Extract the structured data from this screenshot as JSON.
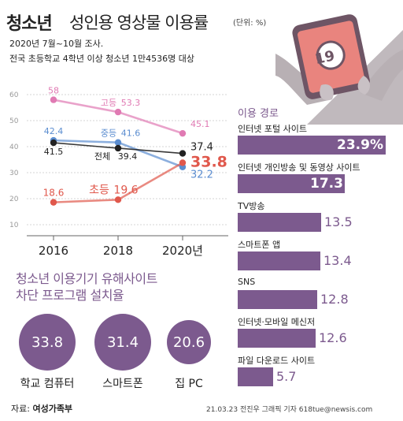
{
  "header": {
    "title_bold": "청소년",
    "title_rest": "성인용 영상물 이용률",
    "unit": "(단위: %)",
    "note1": "2020년 7월~10월 조사.",
    "note2": "전국 초등학교 4학년 이상 청소년 1만4536명 대상"
  },
  "illustration": {
    "badge": "19",
    "icon": "phone-in-hands-icon"
  },
  "chart_data": [
    {
      "type": "line",
      "categories": [
        "2016",
        "2018",
        "2020년"
      ],
      "ylim": [
        10,
        60
      ],
      "yticks": [
        10,
        20,
        30,
        40,
        50,
        60
      ],
      "grid": true,
      "series": [
        {
          "name": "고등",
          "values": [
            58,
            53.3,
            45.1
          ],
          "labels": [
            "58",
            "53.3",
            "45.1"
          ],
          "color": "#e07ab3"
        },
        {
          "name": "중등",
          "values": [
            42.4,
            41.6,
            32.2
          ],
          "labels": [
            "42.4",
            "41.6",
            "32.2"
          ],
          "color": "#5b8dd0"
        },
        {
          "name": "전체",
          "values": [
            41.5,
            39.4,
            37.4
          ],
          "labels": [
            "41.5",
            "39.4",
            "37.4"
          ],
          "color": "#222222"
        },
        {
          "name": "초등",
          "values": [
            18.6,
            19.6,
            33.8
          ],
          "labels": [
            "18.6",
            "19.6",
            "33.8"
          ],
          "color": "#e0584c"
        }
      ]
    },
    {
      "type": "bar",
      "title": "이용 경로",
      "categories": [
        "인터넷 포털 사이트",
        "인터넷 개인방송 및 동영상 사이트",
        "TV방송",
        "스마트폰 앱",
        "SNS",
        "인터넷·모바일 메신저",
        "파일 다운로드 사이트"
      ],
      "values": [
        23.9,
        17.3,
        13.5,
        13.4,
        12.8,
        12.6,
        5.7
      ],
      "labels": [
        "23.9%",
        "17.3",
        "13.5",
        "13.4",
        "12.8",
        "12.6",
        "5.7"
      ],
      "color": "#7c5a8e"
    },
    {
      "type": "bubble",
      "title": "청소년 이용기기 유해사이트 차단 프로그램 설치율",
      "categories": [
        "학교 컴퓨터",
        "스마트폰",
        "집 PC"
      ],
      "values": [
        33.8,
        31.4,
        20.6
      ],
      "labels": [
        "33.8",
        "31.4",
        "20.6"
      ]
    }
  ],
  "block": {
    "title_line1": "청소년 이용기기 유해사이트",
    "title_line2": "차단 프로그램 설치율"
  },
  "footer": {
    "source_prefix": "자료:",
    "source_org": "여성가족부",
    "credit": "21.03.23 전진우 그래픽 기자 618tue@newsis.com"
  },
  "colors": {
    "accent": "#7c5a8e",
    "high": "#e07ab3",
    "middle": "#5b8dd0",
    "total": "#222222",
    "elementary": "#e0584c"
  }
}
